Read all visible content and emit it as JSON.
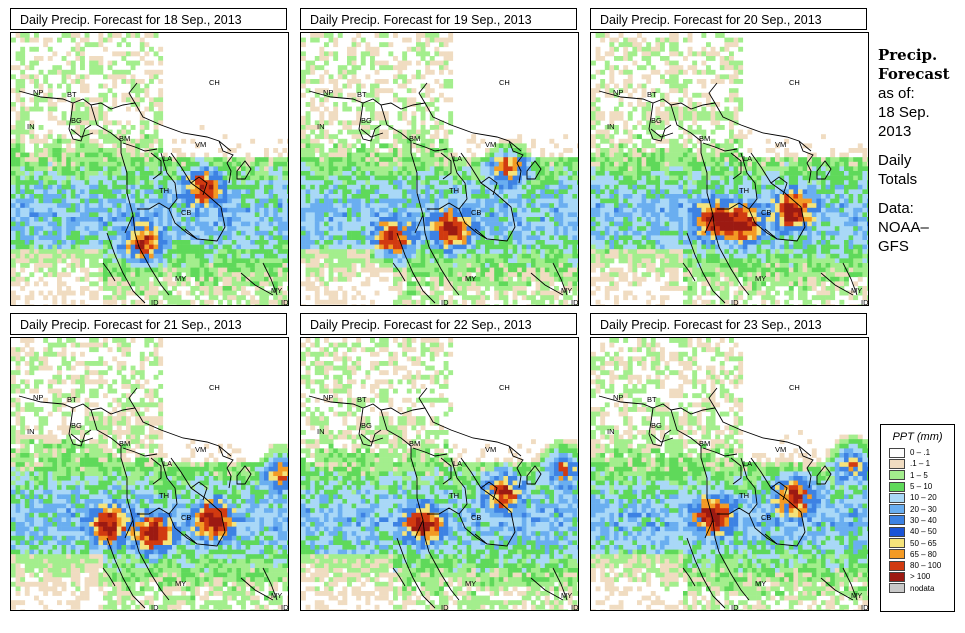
{
  "panels": [
    {
      "title": "Daily Precip. Forecast for  18 Sep., 2013"
    },
    {
      "title": "Daily Precip. Forecast for  19 Sep., 2013"
    },
    {
      "title": "Daily Precip. Forecast for  20 Sep., 2013"
    },
    {
      "title": "Daily Precip. Forecast for  21 Sep., 2013"
    },
    {
      "title": "Daily Precip. Forecast for  22 Sep., 2013"
    },
    {
      "title": "Daily Precip. Forecast for  23 Sep., 2013"
    }
  ],
  "country_labels": {
    "NP": "NP",
    "BT": "BT",
    "BG": "BG",
    "IN": "IN",
    "BM": "BM",
    "CH": "CH",
    "VM": "VM",
    "LA": "LA",
    "TH": "TH",
    "CB": "CB",
    "MY": "MY",
    "ID": "ID",
    "MY2": "MY",
    "ID2": "ID"
  },
  "side": {
    "heading1": "Precip.",
    "heading2": "Forecast",
    "asof1": "as of:",
    "asof2": "18 Sep.",
    "asof3": "2013",
    "totals1": "Daily",
    "totals2": "Totals",
    "data1": "Data:",
    "data2": "NOAA–",
    "data3": "GFS"
  },
  "legend": {
    "title": "PPT (mm)",
    "items": [
      {
        "label": "0 – .1",
        "color": "#fdfdfd"
      },
      {
        "label": ".1 – 1",
        "color": "#f0dcc1"
      },
      {
        "label": "1 – 5",
        "color": "#a3ee8d"
      },
      {
        "label": "5 – 10",
        "color": "#5fd95a"
      },
      {
        "label": "10 – 20",
        "color": "#a9d8f7"
      },
      {
        "label": "20 – 30",
        "color": "#6aaef0"
      },
      {
        "label": "30 – 40",
        "color": "#3d82e3"
      },
      {
        "label": "40 – 50",
        "color": "#1b54d6"
      },
      {
        "label": "50 – 65",
        "color": "#f5e37a"
      },
      {
        "label": "65 – 80",
        "color": "#f39a24"
      },
      {
        "label": "80 – 100",
        "color": "#d13a10"
      },
      {
        "label": "> 100",
        "color": "#9c1a12"
      },
      {
        "label": "nodata",
        "color": "#c8c8c8"
      }
    ]
  }
}
